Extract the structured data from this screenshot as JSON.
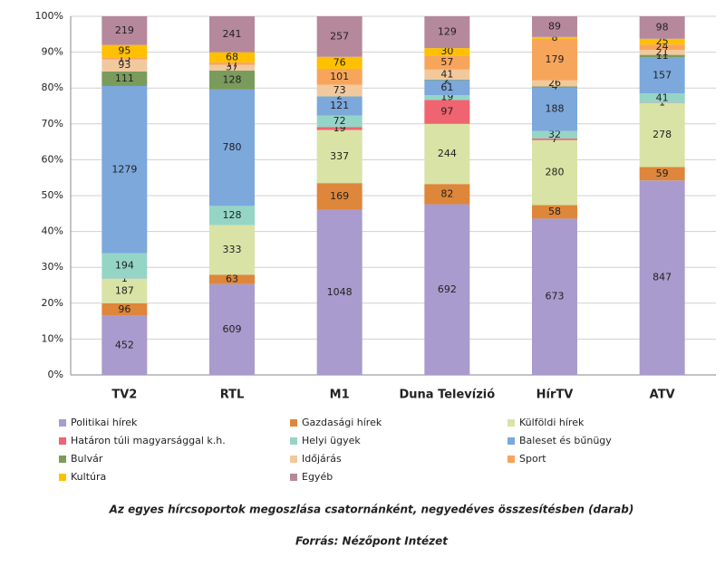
{
  "chart_data": {
    "type": "bar",
    "stacking": "percent",
    "caption": "Az egyes hírcsoportok megoszlása csatornánként, negyedéves összesítésben (darab)",
    "source": "Forrás: Nézőpont Intézet",
    "categories": [
      "TV2",
      "RTL",
      "M1",
      "Duna Televízió",
      "HírTV",
      "ATV"
    ],
    "ylim": [
      0,
      100
    ],
    "yticks": [
      {
        "value": 0,
        "label": "0%"
      },
      {
        "value": 10,
        "label": "10%"
      },
      {
        "value": 20,
        "label": "20%"
      },
      {
        "value": 30,
        "label": "30%"
      },
      {
        "value": 40,
        "label": "40%"
      },
      {
        "value": 50,
        "label": "50%"
      },
      {
        "value": 60,
        "label": "60%"
      },
      {
        "value": 70,
        "label": "70%"
      },
      {
        "value": 80,
        "label": "80%"
      },
      {
        "value": 90,
        "label": "90%"
      },
      {
        "value": 100,
        "label": "100%"
      }
    ],
    "grid": true,
    "series": [
      {
        "name": "Politikai hírek",
        "color": "#a99bcd",
        "values": [
          452,
          609,
          1048,
          692,
          673,
          847
        ]
      },
      {
        "name": "Gazdasági hírek",
        "color": "#de8639",
        "values": [
          96,
          63,
          169,
          82,
          58,
          59
        ]
      },
      {
        "name": "Külföldi hírek",
        "color": "#d9e3a5",
        "values": [
          187,
          333,
          337,
          244,
          280,
          278
        ]
      },
      {
        "name": "Határon túli magyarsággal k.h.",
        "color": "#ef6470",
        "values": [
          1,
          null,
          19,
          97,
          7,
          1
        ]
      },
      {
        "name": "Helyi ügyek",
        "color": "#95d5c6",
        "values": [
          194,
          128,
          72,
          19,
          32,
          41
        ]
      },
      {
        "name": "Baleset és bűnügy",
        "color": "#7ca8dc",
        "values": [
          1279,
          780,
          121,
          61,
          188,
          157
        ]
      },
      {
        "name": "Bulvár",
        "color": "#7b9b5c",
        "values": [
          111,
          128,
          2,
          2,
          4,
          11
        ]
      },
      {
        "name": "Időjárás",
        "color": "#f1c99d",
        "values": [
          93,
          37,
          73,
          41,
          26,
          21
        ]
      },
      {
        "name": "Sport",
        "color": "#f8a55c",
        "values": [
          15,
          17,
          101,
          57,
          179,
          24
        ]
      },
      {
        "name": "Kultúra",
        "color": "#ffc000",
        "values": [
          95,
          68,
          76,
          30,
          8,
          25
        ]
      },
      {
        "name": "Egyéb",
        "color": "#b6889c",
        "values": [
          219,
          241,
          257,
          129,
          89,
          98
        ]
      }
    ]
  }
}
